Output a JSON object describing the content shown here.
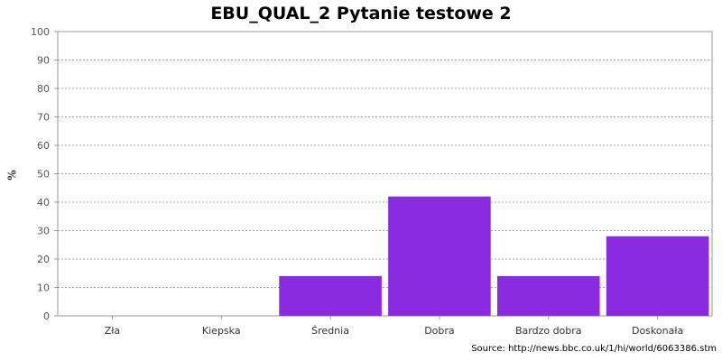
{
  "chart_data": {
    "type": "bar",
    "title": "EBU_QUAL_2 Pytanie testowe 2",
    "ylabel": "%",
    "xlabel": "",
    "categories": [
      "Zła",
      "Kiepska",
      "Średnia",
      "Dobra",
      "Bardzo dobra",
      "Doskonała"
    ],
    "values": [
      0,
      0,
      14,
      42,
      14,
      28
    ],
    "ylim": [
      0,
      100
    ],
    "yticks": [
      0,
      10,
      20,
      30,
      40,
      50,
      60,
      70,
      80,
      90,
      100
    ],
    "grid": true,
    "bar_color": "#8a2be2",
    "source": "Source: http://news.bbc.co.uk/1/hi/world/6063386.stm"
  }
}
